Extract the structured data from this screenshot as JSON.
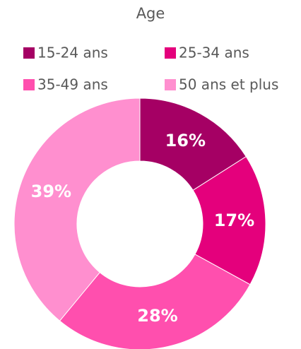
{
  "chart_data": {
    "type": "donut",
    "title": "Age",
    "categories": [
      "15-24 ans",
      "25-34 ans",
      "35-49 ans",
      "50 ans et plus"
    ],
    "values": [
      16,
      17,
      28,
      39
    ],
    "value_labels": [
      "16%",
      "17%",
      "28%",
      "39%"
    ],
    "colors": [
      "#a50064",
      "#e4007c",
      "#ff4fae",
      "#ff8fcf"
    ],
    "legend": "top"
  }
}
